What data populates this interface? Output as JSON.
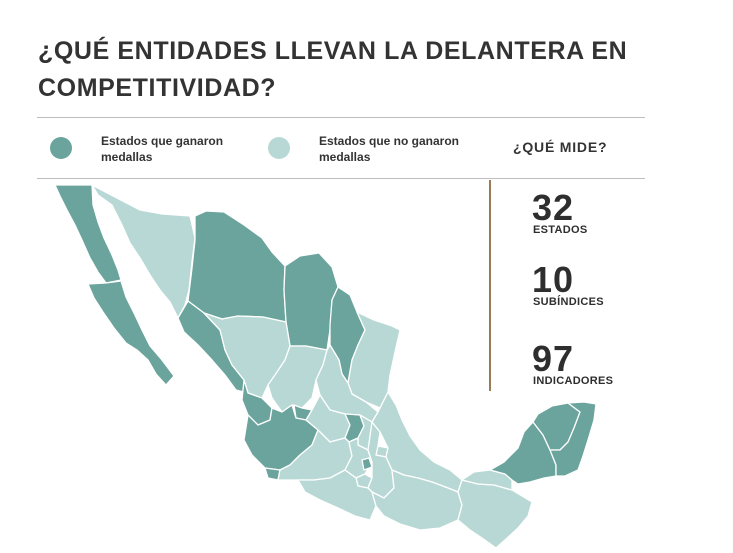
{
  "title": "¿QUÉ ENTIDADES LLEVAN LA DELANTERA EN COMPETITIVIDAD?",
  "legend": {
    "medal": {
      "label": "Estados que ganaron medallas",
      "color": "#6aa49c"
    },
    "no_medal": {
      "label": "Estados que no ganaron medallas",
      "color": "#b7d8d4"
    }
  },
  "que_mide": {
    "heading": "¿QUÉ MIDE?",
    "stats": [
      {
        "value": "32",
        "label": "ESTADOS"
      },
      {
        "value": "10",
        "label": "SUBÍNDICES"
      },
      {
        "value": "97",
        "label": "INDICADORES"
      }
    ]
  },
  "map": {
    "region": "México",
    "states": [
      {
        "name": "Baja California",
        "medal": true
      },
      {
        "name": "Baja California Sur",
        "medal": true
      },
      {
        "name": "Sonora",
        "medal": false
      },
      {
        "name": "Chihuahua",
        "medal": true
      },
      {
        "name": "Coahuila",
        "medal": true
      },
      {
        "name": "Nuevo León",
        "medal": true
      },
      {
        "name": "Tamaulipas",
        "medal": false
      },
      {
        "name": "Sinaloa",
        "medal": true
      },
      {
        "name": "Durango",
        "medal": false
      },
      {
        "name": "Zacatecas",
        "medal": false
      },
      {
        "name": "San Luis Potosí",
        "medal": false
      },
      {
        "name": "Nayarit",
        "medal": true
      },
      {
        "name": "Aguascalientes",
        "medal": true
      },
      {
        "name": "Jalisco",
        "medal": true
      },
      {
        "name": "Guanajuato",
        "medal": false
      },
      {
        "name": "Querétaro",
        "medal": true
      },
      {
        "name": "Hidalgo",
        "medal": false
      },
      {
        "name": "Colima",
        "medal": true
      },
      {
        "name": "Michoacán",
        "medal": false
      },
      {
        "name": "Estado de México",
        "medal": false
      },
      {
        "name": "Ciudad de México",
        "medal": true
      },
      {
        "name": "Morelos",
        "medal": false
      },
      {
        "name": "Tlaxcala",
        "medal": false
      },
      {
        "name": "Puebla",
        "medal": false
      },
      {
        "name": "Veracruz",
        "medal": false
      },
      {
        "name": "Guerrero",
        "medal": false
      },
      {
        "name": "Oaxaca",
        "medal": false
      },
      {
        "name": "Chiapas",
        "medal": false
      },
      {
        "name": "Tabasco",
        "medal": false
      },
      {
        "name": "Campeche",
        "medal": true
      },
      {
        "name": "Yucatán",
        "medal": true
      },
      {
        "name": "Quintana Roo",
        "medal": true
      }
    ]
  }
}
